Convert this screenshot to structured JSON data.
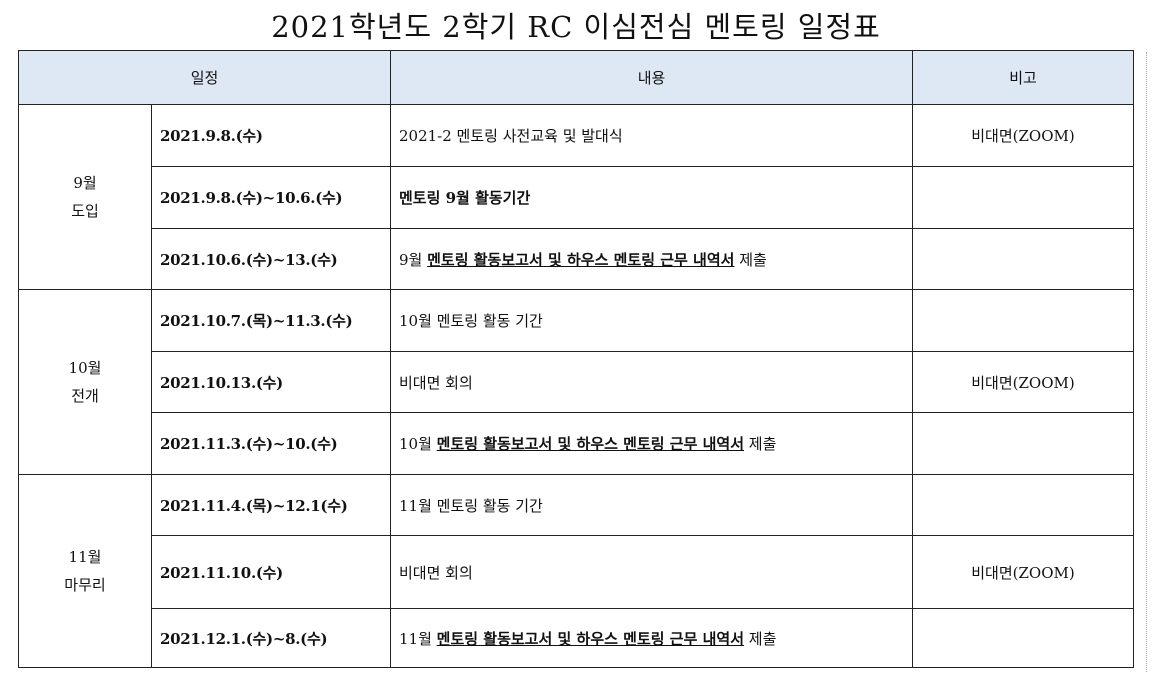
{
  "title": "2021학년도 2학기 RC 이심전심 멘토링 일정표",
  "headers": {
    "schedule": "일정",
    "content": "내용",
    "note": "비고"
  },
  "groups": [
    {
      "label_line1": "9월",
      "label_line2": "도입",
      "rows": [
        {
          "date": "2021.9.8.(수)",
          "pre": "2021-2 멘토링 사전교육 및 발대식",
          "underlined": "",
          "post": "",
          "note": "비대면(ZOOM)"
        },
        {
          "date": "2021.9.8.(수)~10.6.(수)",
          "pre": "멘토링 9월 활동기간",
          "underlined": "",
          "post": "",
          "note": ""
        },
        {
          "date": "2021.10.6.(수)~13.(수)",
          "pre": "9월 ",
          "underlined": "멘토링 활동보고서 및 하우스 멘토링 근무 내역서",
          "post": " 제출",
          "note": ""
        }
      ]
    },
    {
      "label_line1": "10월",
      "label_line2": "전개",
      "rows": [
        {
          "date": "2021.10.7.(목)~11.3.(수)",
          "pre": "10월 멘토링 활동 기간",
          "underlined": "",
          "post": "",
          "note": ""
        },
        {
          "date": "2021.10.13.(수)",
          "pre": "비대면 회의",
          "underlined": "",
          "post": "",
          "note": "비대면(ZOOM)"
        },
        {
          "date": "2021.11.3.(수)~10.(수)",
          "pre": "10월 ",
          "underlined": "멘토링 활동보고서 및 하우스 멘토링 근무 내역서",
          "post": " 제출",
          "note": ""
        }
      ]
    },
    {
      "label_line1": "11월",
      "label_line2": "마무리",
      "rows": [
        {
          "date": "2021.11.4.(목)~12.1(수)",
          "pre": "11월 멘토링 활동 기간",
          "underlined": "",
          "post": "",
          "note": ""
        },
        {
          "date": "2021.11.10.(수)",
          "pre": "비대면 회의",
          "underlined": "",
          "post": "",
          "note": "비대면(ZOOM)"
        },
        {
          "date": "2021.12.1.(수)~8.(수)",
          "pre": "11월 ",
          "underlined": "멘토링 활동보고서 및 하우스 멘토링 근무 내역서",
          "post": " 제출",
          "note": ""
        }
      ]
    }
  ]
}
